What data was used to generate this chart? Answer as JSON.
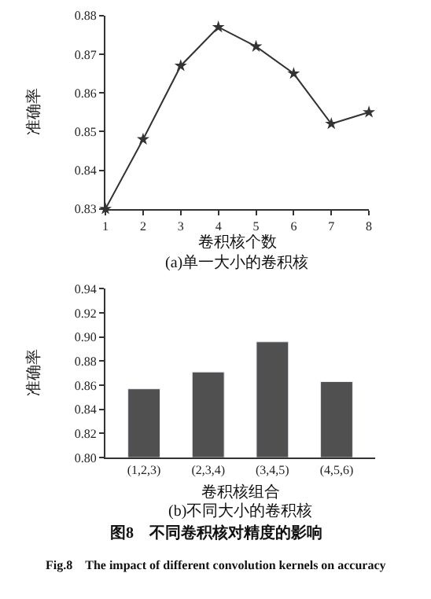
{
  "chart_data": [
    {
      "type": "line",
      "subtitle": "(a)单一大小的卷积核",
      "xlabel": "卷积核个数",
      "ylabel": "准确率",
      "x": [
        1,
        2,
        3,
        4,
        5,
        6,
        7,
        8
      ],
      "series": [
        {
          "color": "#333333",
          "values": [
            0.83,
            0.848,
            0.867,
            0.877,
            0.872,
            0.865,
            0.852,
            0.855
          ]
        }
      ],
      "xlim": [
        1,
        8
      ],
      "xticks": [
        1,
        2,
        3,
        4,
        5,
        6,
        7,
        8
      ],
      "ylim": [
        0.83,
        0.88
      ],
      "yticks": [
        0.83,
        0.84,
        0.85,
        0.86,
        0.87,
        0.88
      ],
      "marker": "star",
      "line_style": "solid"
    },
    {
      "type": "bar",
      "subtitle": "(b)不同大小的卷积核",
      "xlabel": "卷积核组合",
      "ylabel": "准确率",
      "categories": [
        "(1,2,3)",
        "(2,3,4)",
        "(3,4,5)",
        "(4,5,6)"
      ],
      "series": [
        {
          "color": "#505050",
          "values": [
            0.857,
            0.871,
            0.896,
            0.863
          ]
        }
      ],
      "ylim": [
        0.8,
        0.94
      ],
      "yticks": [
        {
          "value": 0.8,
          "label": "0.80"
        },
        {
          "value": 0.82,
          "label": "0.82"
        },
        {
          "value": 0.84,
          "label": "0.84"
        },
        {
          "value": 0.86,
          "label": "0.86"
        },
        {
          "value": 0.88,
          "label": "0.88"
        },
        {
          "value": 0.9,
          "label": "0.90"
        },
        {
          "value": 0.92,
          "label": "0.92"
        },
        {
          "value": 0.94,
          "label": "0.94"
        }
      ],
      "annotations": [
        "图8　不同卷积核对精度的影响",
        "Fig.8　The impact of different convolution kernels on accuracy"
      ]
    }
  ]
}
